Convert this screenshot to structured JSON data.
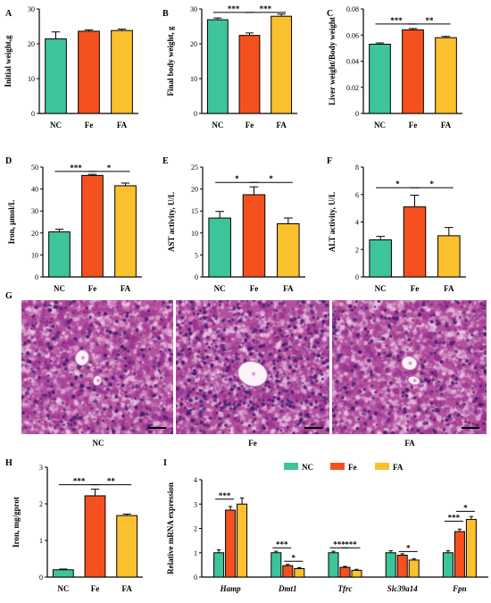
{
  "colors": {
    "NC": "#3ec49a",
    "Fe": "#f4511e",
    "FA": "#fbc02d",
    "tissue": "#b4509e"
  },
  "chart_data": [
    {
      "id": "A",
      "type": "bar",
      "categories": [
        "NC",
        "Fe",
        "FA"
      ],
      "values": [
        21.4,
        23.6,
        23.8
      ],
      "errors": [
        2.0,
        0.4,
        0.4
      ],
      "ylabel": "Initial weight,g",
      "ylim": [
        0,
        30
      ],
      "yticks": [
        0,
        10,
        20,
        30
      ],
      "sig": []
    },
    {
      "id": "B",
      "type": "bar",
      "categories": [
        "NC",
        "Fe",
        "FA"
      ],
      "values": [
        26.9,
        22.4,
        27.9
      ],
      "errors": [
        0.5,
        0.7,
        0.6
      ],
      "ylabel": "Final body weight, g",
      "ylim": [
        0,
        30
      ],
      "yticks": [
        0,
        10,
        20,
        30
      ],
      "sig": [
        {
          "from": 0,
          "to": 1,
          "label": "***",
          "y": 29.0
        },
        {
          "from": 1,
          "to": 2,
          "label": "***",
          "y": 29.0
        }
      ]
    },
    {
      "id": "C",
      "type": "bar",
      "categories": [
        "NC",
        "Fe",
        "FA"
      ],
      "values": [
        0.053,
        0.064,
        0.058
      ],
      "errors": [
        0.001,
        0.001,
        0.001
      ],
      "ylabel": "Liver weight/Body weight",
      "ylim": [
        0,
        0.08
      ],
      "yticks": [
        0,
        0.02,
        0.04,
        0.06,
        0.08
      ],
      "sig": [
        {
          "from": 0,
          "to": 1,
          "label": "***",
          "y": 0.0685
        },
        {
          "from": 1,
          "to": 2,
          "label": "**",
          "y": 0.0685
        }
      ]
    },
    {
      "id": "D",
      "type": "bar",
      "categories": [
        "NC",
        "Fe",
        "FA"
      ],
      "values": [
        20.5,
        46.2,
        41.5
      ],
      "errors": [
        1.2,
        0.5,
        1.2
      ],
      "ylabel": "Iron, μmol/L",
      "ylim": [
        0,
        50
      ],
      "yticks": [
        0,
        10,
        20,
        30,
        40,
        50
      ],
      "sig": [
        {
          "from": 0,
          "to": 1,
          "label": "***",
          "y": 48.0
        },
        {
          "from": 1,
          "to": 2,
          "label": "*",
          "y": 48.0
        }
      ]
    },
    {
      "id": "E",
      "type": "bar",
      "categories": [
        "NC",
        "Fe",
        "FA"
      ],
      "values": [
        13.4,
        18.7,
        12.1
      ],
      "errors": [
        1.5,
        1.8,
        1.3
      ],
      "ylabel": "AST activity, U/L",
      "ylim": [
        0,
        25
      ],
      "yticks": [
        0,
        5,
        10,
        15,
        20,
        25
      ],
      "sig": [
        {
          "from": 0,
          "to": 1,
          "label": "*",
          "y": 21.5
        },
        {
          "from": 1,
          "to": 2,
          "label": "*",
          "y": 21.5
        }
      ]
    },
    {
      "id": "F",
      "type": "bar",
      "categories": [
        "NC",
        "Fe",
        "FA"
      ],
      "values": [
        2.7,
        5.1,
        3.0
      ],
      "errors": [
        0.25,
        0.85,
        0.6
      ],
      "ylabel": "ALT activity, U/L",
      "ylim": [
        0,
        8
      ],
      "yticks": [
        0,
        2,
        4,
        6,
        8
      ],
      "sig": [
        {
          "from": 0,
          "to": 1,
          "label": "*",
          "y": 6.5
        },
        {
          "from": 1,
          "to": 2,
          "label": "*",
          "y": 6.5
        }
      ]
    },
    {
      "id": "H",
      "type": "bar",
      "categories": [
        "NC",
        "Fe",
        "FA"
      ],
      "values": [
        0.2,
        2.22,
        1.68
      ],
      "errors": [
        0.02,
        0.18,
        0.04
      ],
      "ylabel": "Iron, mg/gprot",
      "ylim": [
        0,
        3
      ],
      "yticks": [
        0,
        1,
        2,
        3
      ],
      "sig": [
        {
          "from": 0,
          "to": 1,
          "label": "***",
          "y": 2.52
        },
        {
          "from": 1,
          "to": 2,
          "label": "**",
          "y": 2.52
        }
      ]
    },
    {
      "id": "I",
      "type": "bar",
      "categories": [
        "Hamp",
        "Dmt1",
        "Tfrc",
        "Slc39a14",
        "Fpn"
      ],
      "series": [
        {
          "name": "NC",
          "values": [
            1.0,
            1.0,
            1.0,
            1.0,
            1.0
          ],
          "errors": [
            0.12,
            0.06,
            0.06,
            0.08,
            0.08
          ]
        },
        {
          "name": "Fe",
          "values": [
            2.75,
            0.47,
            0.4,
            0.9,
            1.87
          ],
          "errors": [
            0.15,
            0.05,
            0.04,
            0.06,
            0.1
          ]
        },
        {
          "name": "FA",
          "values": [
            3.0,
            0.35,
            0.28,
            0.7,
            2.37
          ],
          "errors": [
            0.25,
            0.04,
            0.04,
            0.05,
            0.12
          ]
        }
      ],
      "ylabel": "Relative mRNA expression",
      "ylim": [
        0,
        4
      ],
      "yticks": [
        0,
        1,
        2,
        3,
        4
      ],
      "legend": "top",
      "sig": [
        {
          "cat": 0,
          "from": 0,
          "to": 1,
          "label": "***",
          "y": 3.2
        },
        {
          "cat": 1,
          "from": 0,
          "to": 1,
          "label": "***",
          "y": 1.2
        },
        {
          "cat": 1,
          "from": 1,
          "to": 2,
          "label": "*",
          "y": 0.65
        },
        {
          "cat": 2,
          "from": 0,
          "to": 1,
          "label": "***",
          "y": 1.2
        },
        {
          "cat": 2,
          "from": 1,
          "to": 2,
          "label": "***",
          "y": 1.2
        },
        {
          "cat": 3,
          "from": 1,
          "to": 2,
          "label": "*",
          "y": 1.05
        },
        {
          "cat": 4,
          "from": 0,
          "to": 1,
          "label": "***",
          "y": 2.3
        },
        {
          "cat": 4,
          "from": 1,
          "to": 2,
          "label": "*",
          "y": 2.7
        }
      ]
    }
  ],
  "histology": {
    "letter": "G",
    "labels": [
      "NC",
      "Fe",
      "FA"
    ]
  }
}
